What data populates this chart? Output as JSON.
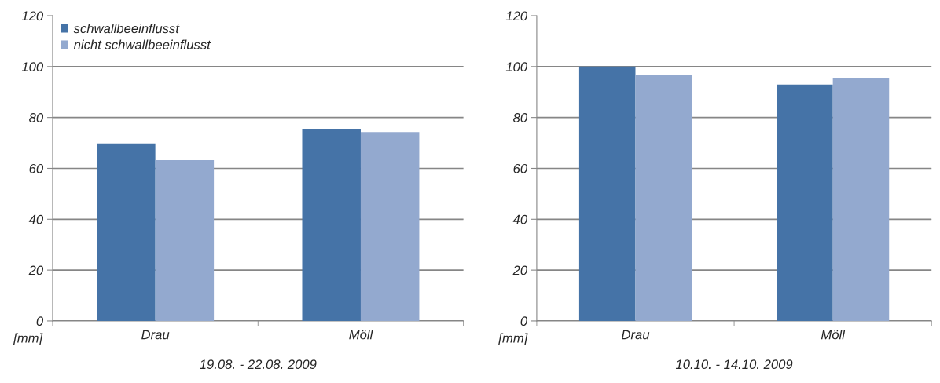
{
  "chart_data": [
    {
      "type": "bar",
      "categories": [
        "Drau",
        "Möll"
      ],
      "ylabel": "[mm]",
      "xlabel": "19.08. - 22.08. 2009",
      "ylim": [
        0,
        120
      ],
      "yticks": [
        0,
        20,
        40,
        60,
        80,
        100,
        120
      ],
      "grid": "y",
      "legend": "top left",
      "series": [
        {
          "name": "schwallbeeinflusst",
          "color": "#4573a7",
          "values": [
            69.8,
            75.5
          ]
        },
        {
          "name": "nicht schwallbeeinflusst",
          "color": "#93a9cf",
          "values": [
            63.2,
            74.3
          ]
        }
      ]
    },
    {
      "type": "bar",
      "categories": [
        "Drau",
        "Möll"
      ],
      "ylabel": "[mm]",
      "xlabel": "10.10. - 14.10. 2009",
      "ylim": [
        0,
        120
      ],
      "yticks": [
        0,
        20,
        40,
        60,
        80,
        100,
        120
      ],
      "grid": "y",
      "series": [
        {
          "color": "#4573a7",
          "values": [
            100,
            92.9
          ]
        },
        {
          "color": "#93a9cf",
          "values": [
            96.6,
            95.6
          ]
        }
      ]
    }
  ]
}
